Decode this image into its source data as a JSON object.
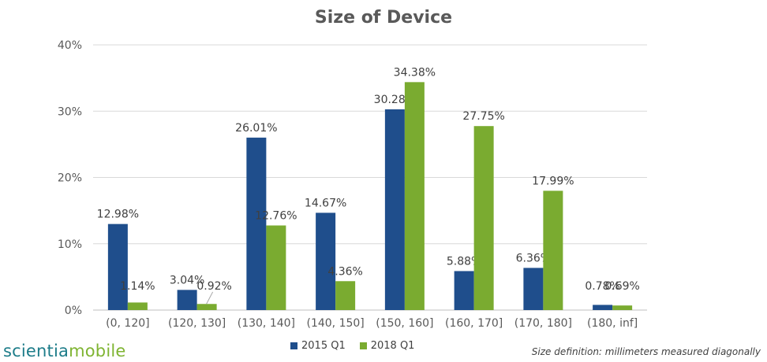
{
  "chart_data": {
    "type": "bar",
    "title": "Size of Device",
    "categories": [
      "(0, 120]",
      "(120, 130]",
      "(130, 140]",
      "(140, 150]",
      "(150, 160]",
      "(160, 170]",
      "(170, 180]",
      "(180, inf]"
    ],
    "series": [
      {
        "name": "2015 Q1",
        "color": "#1f4e8c",
        "values": [
          12.98,
          3.04,
          26.01,
          14.67,
          30.28,
          5.88,
          6.36,
          0.78
        ],
        "labels": [
          "12.98%",
          "3.04%",
          "26.01%",
          "14.67%",
          "30.28%",
          "5.88%",
          "6.36%",
          "0.78%"
        ]
      },
      {
        "name": "2018 Q1",
        "color": "#7aab30",
        "values": [
          1.14,
          0.92,
          12.76,
          4.36,
          34.38,
          27.75,
          17.99,
          0.69
        ],
        "labels": [
          "1.14%",
          "0.92%",
          "12.76%",
          "4.36%",
          "34.38%",
          "27.75%",
          "17.99%",
          "0.69%"
        ]
      }
    ],
    "ylim": [
      0,
      40
    ],
    "yticks": [
      "0%",
      "10%",
      "20%",
      "30%",
      "40%"
    ],
    "grid": true,
    "legend": "bottom"
  },
  "logo": {
    "part1": "scientia",
    "part2": "mobile"
  },
  "footnote": "Size definition: millimeters measured diagonally"
}
